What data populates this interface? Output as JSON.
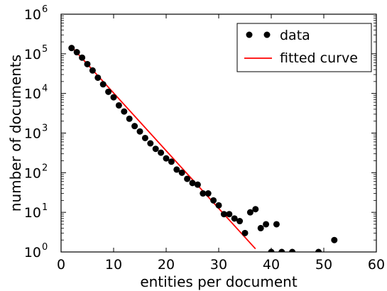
{
  "chart_data": {
    "type": "scatter",
    "xlabel": "entities per document",
    "ylabel": "number of documents",
    "xlim": [
      0,
      60
    ],
    "ylim_log10": [
      0,
      6
    ],
    "y_scale": "log",
    "grid": false,
    "legend_position": "top-right",
    "x_ticks": [
      "0",
      "10",
      "20",
      "30",
      "40",
      "50",
      "60"
    ],
    "y_ticks": [
      {
        "base": "10",
        "exp": "0"
      },
      {
        "base": "10",
        "exp": "1"
      },
      {
        "base": "10",
        "exp": "2"
      },
      {
        "base": "10",
        "exp": "3"
      },
      {
        "base": "10",
        "exp": "4"
      },
      {
        "base": "10",
        "exp": "5"
      },
      {
        "base": "10",
        "exp": "6"
      }
    ],
    "series": [
      {
        "name": "data",
        "kind": "scatter",
        "color": "#000000",
        "x": [
          2,
          3,
          4,
          5,
          6,
          7,
          8,
          9,
          10,
          11,
          12,
          13,
          14,
          15,
          16,
          17,
          18,
          19,
          20,
          21,
          22,
          23,
          24,
          25,
          26,
          27,
          28,
          29,
          30,
          31,
          32,
          33,
          34,
          35,
          36,
          37,
          38,
          39,
          40,
          41,
          42,
          44,
          49,
          52
        ],
        "y": [
          140000,
          110000,
          80000,
          55000,
          38000,
          25000,
          17000,
          11000,
          8000,
          5000,
          3500,
          2300,
          1500,
          1100,
          750,
          550,
          400,
          320,
          230,
          190,
          120,
          100,
          70,
          55,
          50,
          30,
          30,
          20,
          15,
          9,
          9,
          7,
          6,
          3,
          10,
          12,
          4,
          5,
          1,
          5,
          1,
          1,
          1,
          2
        ]
      },
      {
        "name": "fitted curve",
        "kind": "line",
        "color": "#ff0000",
        "x": [
          2,
          37
        ],
        "y": [
          150000,
          1.2
        ]
      }
    ]
  }
}
